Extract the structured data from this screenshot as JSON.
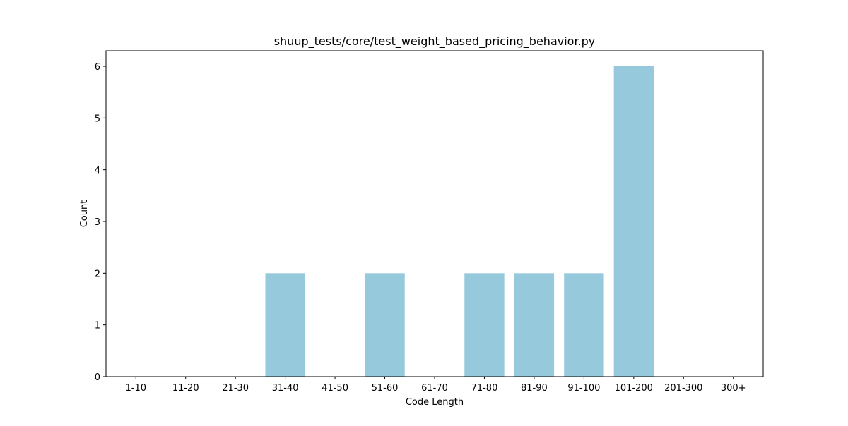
{
  "chart_data": {
    "type": "bar",
    "title": "shuup_tests/core/test_weight_based_pricing_behavior.py",
    "xlabel": "Code Length",
    "ylabel": "Count",
    "categories": [
      "1-10",
      "11-20",
      "21-30",
      "31-40",
      "41-50",
      "51-60",
      "61-70",
      "71-80",
      "81-90",
      "91-100",
      "101-200",
      "201-300",
      "300+"
    ],
    "values": [
      0,
      0,
      0,
      2,
      0,
      2,
      0,
      2,
      2,
      2,
      6,
      0,
      0
    ],
    "ylim": [
      0,
      6.3
    ],
    "yticks": [
      0,
      1,
      2,
      3,
      4,
      5,
      6
    ],
    "grid": false,
    "bar_color": "#96c9dc",
    "axis_color": "#000000"
  }
}
